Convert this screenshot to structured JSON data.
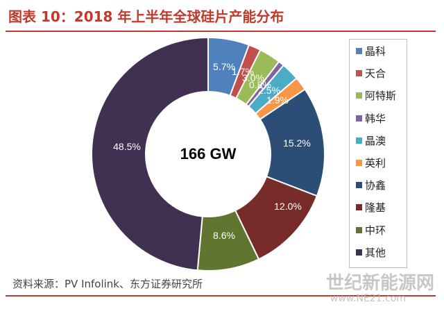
{
  "title": "图表 10：2018 年上半年全球硅片产能分布",
  "source": "资料来源：PV Infolink、东方证券研究所",
  "watermark": {
    "name": "世纪新能源网",
    "url": "www.NE21.com"
  },
  "chart_data": {
    "type": "pie",
    "donut": true,
    "center_label": "166 GW",
    "legend_placement": "right",
    "categories": [
      "晶科",
      "天合",
      "阿特斯",
      "韩华",
      "晶澳",
      "英利",
      "协鑫",
      "隆基",
      "中环",
      "其他"
    ],
    "values": [
      5.7,
      1.7,
      3.0,
      0.8,
      2.5,
      1.9,
      15.2,
      12.0,
      8.6,
      48.5
    ],
    "value_labels": [
      "5.7%",
      "1.7%",
      "3.0%",
      "0.8%",
      "2.5%",
      "1.9%",
      "15.2%",
      "12.0%",
      "8.6%",
      "48.5%"
    ],
    "colors": [
      "#4f81bd",
      "#c0504d",
      "#9bbb59",
      "#8064a2",
      "#4bacc6",
      "#f79646",
      "#2c4d75",
      "#772c2a",
      "#5f7530",
      "#403152"
    ]
  }
}
